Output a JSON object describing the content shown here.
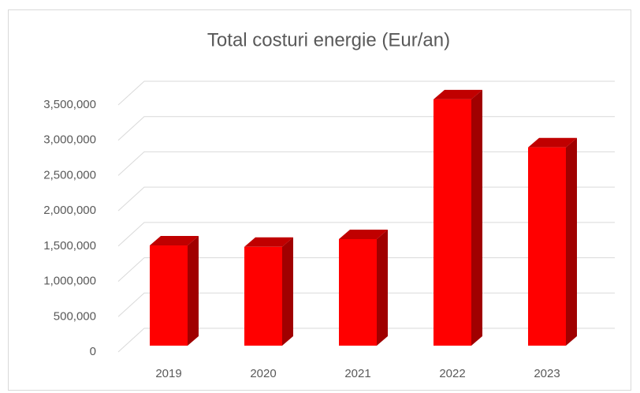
{
  "chart_data": {
    "type": "bar3d",
    "title": "Total costuri energie (Eur/an)",
    "categories": [
      "2019",
      "2020",
      "2021",
      "2022",
      "2023"
    ],
    "values": [
      1420000,
      1400000,
      1510000,
      3490000,
      2810000
    ],
    "color": "#ff0000",
    "ylim": [
      0,
      3500000
    ],
    "yticks": [
      0,
      {
        "value": 500000,
        "label": "500,000"
      },
      {
        "value": 1000000,
        "label": "1,000,000"
      },
      {
        "value": 1500000,
        "label": "1,500,000"
      },
      {
        "value": 2000000,
        "label": "2,000,000"
      },
      {
        "value": 2500000,
        "label": "2,500,000"
      },
      {
        "value": 3000000,
        "label": "3,000,000"
      },
      {
        "value": 3500000,
        "label": "3,500,000"
      }
    ],
    "grid": true
  }
}
